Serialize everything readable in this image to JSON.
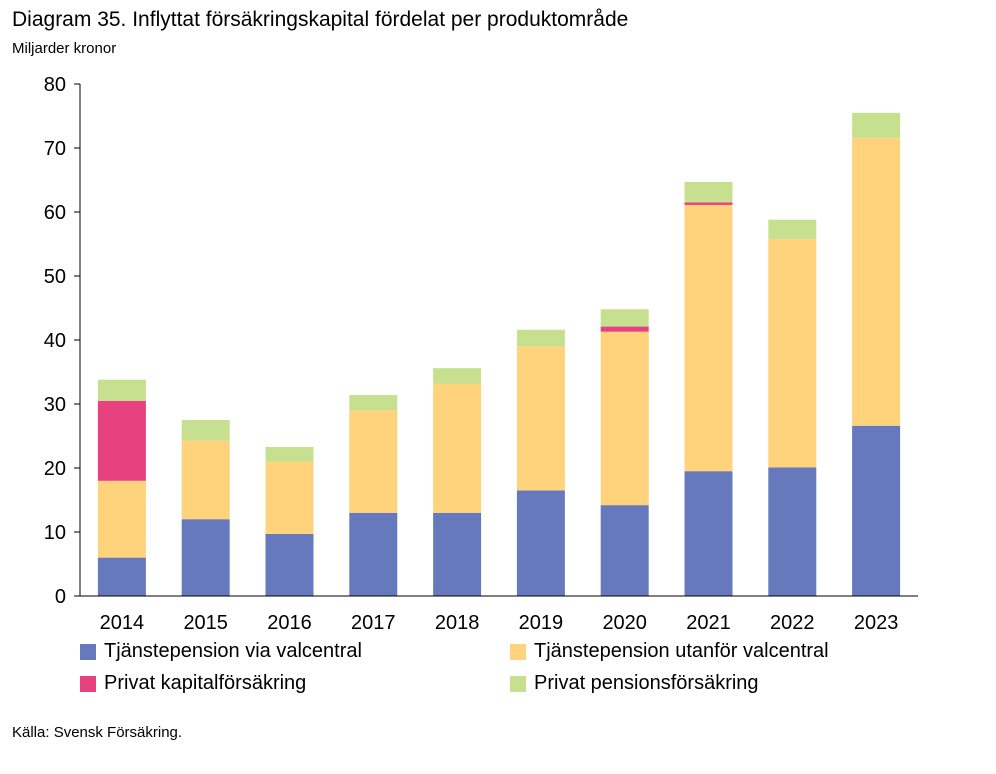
{
  "header": {
    "title": "Diagram 35. Inflyttat försäkringskapital fördelat per produktområde",
    "unit": "Miljarder kronor"
  },
  "footer": {
    "source": "Källa: Svensk Försäkring."
  },
  "chart_data": {
    "type": "bar",
    "stacked": true,
    "title": "Diagram 35. Inflyttat försäkringskapital fördelat per produktområde",
    "ylabel": "Miljarder kronor",
    "xlabel": "",
    "ylim": [
      0,
      80
    ],
    "yticks": [
      0,
      10,
      20,
      30,
      40,
      50,
      60,
      70,
      80
    ],
    "grid": false,
    "legend_position": "bottom",
    "categories": [
      "2014",
      "2015",
      "2016",
      "2017",
      "2018",
      "2019",
      "2020",
      "2021",
      "2022",
      "2023"
    ],
    "series": [
      {
        "name": "Tjänstepension via valcentral",
        "color": "#6679BD",
        "values": [
          6.0,
          12.0,
          9.7,
          13.0,
          13.0,
          16.5,
          14.2,
          19.5,
          20.1,
          26.6
        ]
      },
      {
        "name": "Tjänstepension utanför valcentral",
        "color": "#FFD37B",
        "values": [
          12.0,
          12.3,
          11.3,
          16.0,
          20.2,
          22.5,
          27.1,
          41.6,
          35.7,
          45.0
        ]
      },
      {
        "name": "Privat kapitalförsäkring",
        "color": "#E8417F",
        "values": [
          12.5,
          0.0,
          0.0,
          0.0,
          0.0,
          0.0,
          0.8,
          0.4,
          0.0,
          0.0
        ]
      },
      {
        "name": "Privat pensionsförsäkring",
        "color": "#C6E08F",
        "values": [
          3.3,
          3.2,
          2.3,
          2.4,
          2.4,
          2.6,
          2.7,
          3.2,
          3.0,
          3.9
        ]
      }
    ]
  }
}
